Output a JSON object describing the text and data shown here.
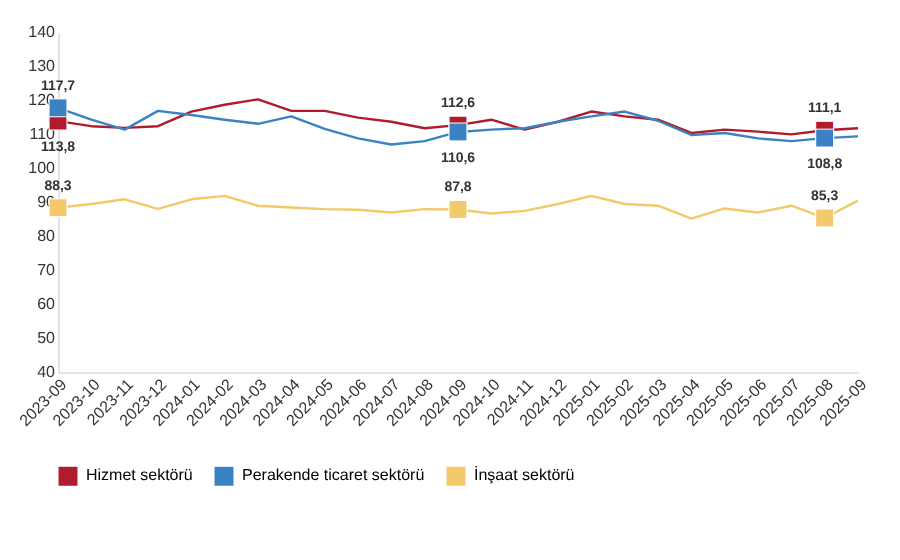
{
  "chart_data": {
    "type": "line",
    "categories": [
      "2023-09",
      "2023-10",
      "2023-11",
      "2023-12",
      "2024-01",
      "2024-02",
      "2024-03",
      "2024-04",
      "2024-05",
      "2024-06",
      "2024-07",
      "2024-08",
      "2024-09",
      "2024-10",
      "2024-11",
      "2024-12",
      "2025-01",
      "2025-02",
      "2025-03",
      "2025-04",
      "2025-05",
      "2025-06",
      "2025-07",
      "2025-08",
      "2025-09"
    ],
    "series": [
      {
        "name": "Hizmet sektörü",
        "color": "#b01c2e",
        "values": [
          113.8,
          112.3,
          111.8,
          112.3,
          116.6,
          118.6,
          120.2,
          116.8,
          116.8,
          114.8,
          113.6,
          111.7,
          112.6,
          114.2,
          111.3,
          113.6,
          116.6,
          115.2,
          114.2,
          110.3,
          111.3,
          110.7,
          109.9,
          111.1,
          111.7
        ],
        "value_labels": [
          "113,8",
          null,
          null,
          null,
          null,
          null,
          null,
          null,
          null,
          null,
          null,
          null,
          "112,6",
          null,
          null,
          null,
          null,
          null,
          null,
          null,
          null,
          null,
          null,
          "111,1",
          null
        ]
      },
      {
        "name": "Perakende ticaret sektörü",
        "color": "#3b82c4",
        "values": [
          117.7,
          114.2,
          111.3,
          116.8,
          115.6,
          114.2,
          113.0,
          115.2,
          111.5,
          108.7,
          106.9,
          107.9,
          110.6,
          111.3,
          111.7,
          113.6,
          115.2,
          116.6,
          113.9,
          109.7,
          110.3,
          108.7,
          107.9,
          108.8,
          109.3
        ],
        "value_labels": [
          "117,7",
          null,
          null,
          null,
          null,
          null,
          null,
          null,
          null,
          null,
          null,
          null,
          "110,6",
          null,
          null,
          null,
          null,
          null,
          null,
          null,
          null,
          null,
          null,
          "108,8",
          null
        ]
      },
      {
        "name": "İnşaat sektörü",
        "color": "#f2c96b",
        "values": [
          88.3,
          89.4,
          90.8,
          88.0,
          90.8,
          91.8,
          88.9,
          88.4,
          87.9,
          87.7,
          86.9,
          87.9,
          87.8,
          86.6,
          87.4,
          89.4,
          91.8,
          89.4,
          88.9,
          85.1,
          88.1,
          86.9,
          88.9,
          85.3,
          90.4
        ],
        "value_labels": [
          "88,3",
          null,
          null,
          null,
          null,
          null,
          null,
          null,
          null,
          null,
          null,
          null,
          "87,8",
          null,
          null,
          null,
          null,
          null,
          null,
          null,
          null,
          null,
          null,
          "85,3",
          null
        ]
      }
    ],
    "ylim": [
      40,
      140
    ],
    "yticks": [
      40,
      50,
      60,
      70,
      80,
      90,
      100,
      110,
      120,
      130,
      140
    ],
    "legend": "bottom",
    "line_style": "solid"
  }
}
